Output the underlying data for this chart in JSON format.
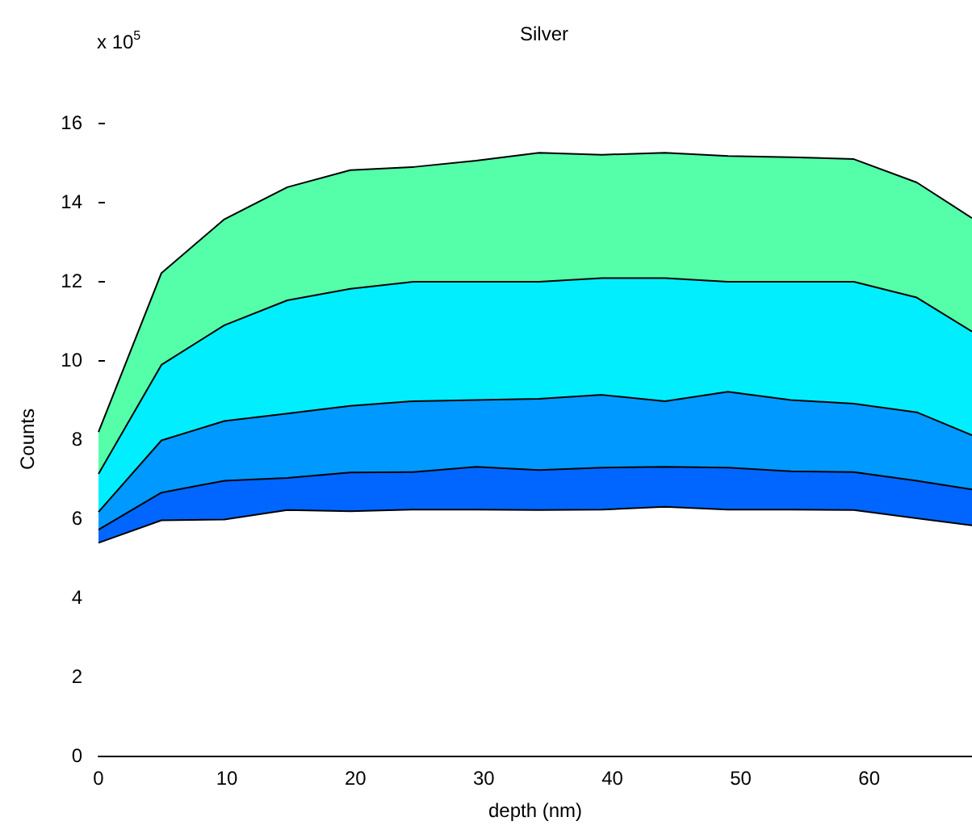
{
  "chart_data": {
    "type": "area",
    "title": "Silver",
    "xlabel": "depth (nm)",
    "ylabel": "Counts",
    "annotations": [
      "x 10$^{5}$"
    ],
    "x": [
      0,
      4.9,
      9.8,
      14.7,
      19.6,
      24.5,
      29.4,
      34.3,
      39.2,
      44.1,
      49,
      53.9,
      58.8,
      63.7,
      68
    ],
    "xlim": [
      0,
      68
    ],
    "xticks": [
      0,
      10,
      20,
      30,
      40,
      50,
      60
    ],
    "ylim": [
      0,
      16
    ],
    "yticks": [
      0,
      2,
      4,
      6,
      8,
      10,
      12,
      14,
      16
    ],
    "grid": false,
    "marker": "none",
    "line_style": "solid",
    "series": [
      {
        "color": "#55ffaa",
        "values": [
          8.18,
          12.2,
          13.56,
          14.37,
          14.8,
          14.88,
          15.04,
          15.24,
          15.19,
          15.24,
          15.16,
          15.13,
          15.08,
          14.49,
          13.59
        ]
      },
      {
        "color": "#00eeff",
        "values": [
          7.12,
          9.88,
          10.88,
          11.51,
          11.8,
          11.98,
          11.98,
          11.98,
          12.07,
          12.07,
          11.98,
          11.98,
          11.98,
          11.58,
          10.72
        ]
      },
      {
        "color": "#0099ff",
        "values": [
          6.16,
          7.97,
          8.46,
          8.65,
          8.84,
          8.96,
          8.99,
          9.02,
          9.12,
          8.96,
          9.2,
          8.99,
          8.9,
          8.68,
          8.1
        ]
      },
      {
        "color": "#0066ff",
        "values": [
          5.71,
          6.65,
          6.95,
          7.02,
          7.16,
          7.17,
          7.3,
          7.22,
          7.28,
          7.3,
          7.28,
          7.19,
          7.17,
          6.95,
          6.73
        ]
      },
      {
        "color": "#ffffff",
        "values": [
          5.38,
          5.95,
          5.97,
          6.21,
          6.18,
          6.22,
          6.22,
          6.21,
          6.22,
          6.29,
          6.22,
          6.22,
          6.21,
          6.0,
          5.82
        ]
      }
    ]
  }
}
